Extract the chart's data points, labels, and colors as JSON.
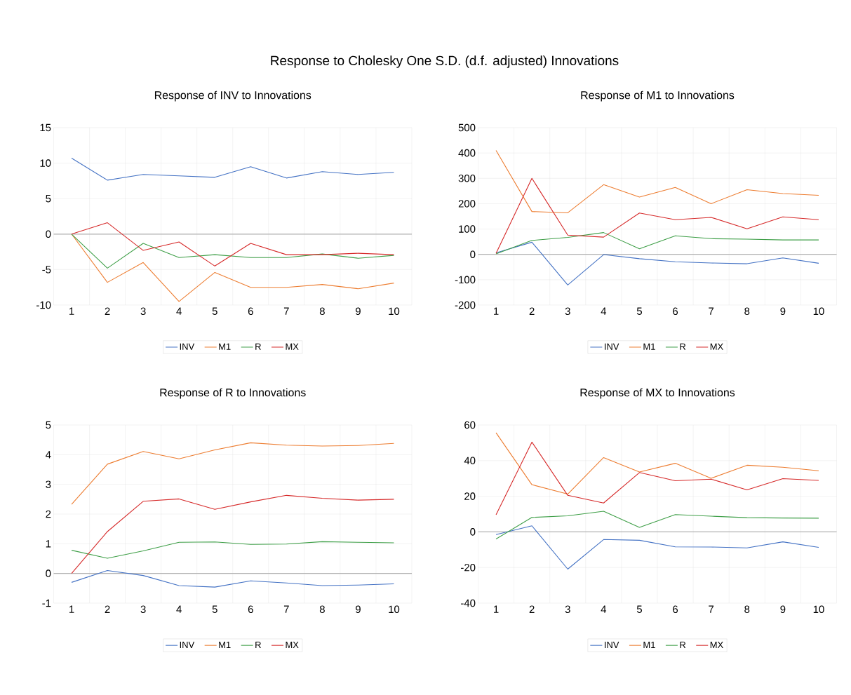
{
  "chart_data": [
    {
      "type": "line",
      "title": "Response of INV to Innovations",
      "annotations": [
        "Response to Cholesky One S.D. (d.f. adjusted) Innovations"
      ],
      "categories": [
        "1",
        "2",
        "3",
        "4",
        "5",
        "6",
        "7",
        "8",
        "9",
        "10"
      ],
      "ylim": [
        -10,
        15
      ],
      "yticks": [
        -10,
        -5,
        0,
        5,
        10,
        15
      ],
      "grid": true,
      "legend": "bottom",
      "series": [
        {
          "name": "INV",
          "color": "#4472c4",
          "values": [
            10.7,
            7.6,
            8.4,
            8.2,
            8.0,
            9.5,
            7.9,
            8.8,
            8.4,
            8.7
          ]
        },
        {
          "name": "M1",
          "color": "#ed7d31",
          "values": [
            0,
            -6.8,
            -4.0,
            -9.5,
            -5.4,
            -7.5,
            -7.5,
            -7.1,
            -7.7,
            -6.9
          ]
        },
        {
          "name": "R",
          "color": "#3f9f48",
          "values": [
            0,
            -4.8,
            -1.3,
            -3.3,
            -2.9,
            -3.3,
            -3.3,
            -2.8,
            -3.4,
            -3.0
          ]
        },
        {
          "name": "MX",
          "color": "#d62a2a",
          "values": [
            0,
            1.6,
            -2.3,
            -1.1,
            -4.5,
            -1.3,
            -2.9,
            -2.9,
            -2.7,
            -2.9
          ]
        }
      ]
    },
    {
      "type": "line",
      "title": "Response of M1 to Innovations",
      "categories": [
        "1",
        "2",
        "3",
        "4",
        "5",
        "6",
        "7",
        "8",
        "9",
        "10"
      ],
      "ylim": [
        -200,
        500
      ],
      "yticks": [
        -200,
        -100,
        0,
        100,
        200,
        300,
        400,
        500
      ],
      "grid": true,
      "legend": "bottom",
      "series": [
        {
          "name": "INV",
          "color": "#4472c4",
          "values": [
            6,
            48,
            -121,
            -1,
            -17,
            -29,
            -34,
            -37,
            -14,
            -35
          ]
        },
        {
          "name": "M1",
          "color": "#ed7d31",
          "values": [
            410,
            169,
            164,
            275,
            226,
            264,
            200,
            255,
            240,
            233
          ]
        },
        {
          "name": "R",
          "color": "#3f9f48",
          "values": [
            2,
            55,
            67,
            86,
            22,
            73,
            62,
            60,
            57,
            57
          ]
        },
        {
          "name": "MX",
          "color": "#d62a2a",
          "values": [
            4,
            300,
            76,
            68,
            163,
            137,
            146,
            101,
            148,
            137
          ]
        }
      ]
    },
    {
      "type": "line",
      "title": "Response of R to Innovations",
      "categories": [
        "1",
        "2",
        "3",
        "4",
        "5",
        "6",
        "7",
        "8",
        "9",
        "10"
      ],
      "ylim": [
        -1,
        5
      ],
      "yticks": [
        -1,
        0,
        1,
        2,
        3,
        4,
        5
      ],
      "grid": true,
      "legend": "bottom",
      "series": [
        {
          "name": "INV",
          "color": "#4472c4",
          "values": [
            -0.3,
            0.1,
            -0.07,
            -0.41,
            -0.46,
            -0.25,
            -0.32,
            -0.41,
            -0.39,
            -0.35
          ]
        },
        {
          "name": "M1",
          "color": "#ed7d31",
          "values": [
            2.33,
            3.68,
            4.11,
            3.86,
            4.16,
            4.4,
            4.32,
            4.29,
            4.31,
            4.38
          ]
        },
        {
          "name": "R",
          "color": "#3f9f48",
          "values": [
            0.78,
            0.51,
            0.76,
            1.05,
            1.06,
            0.98,
            0.99,
            1.07,
            1.05,
            1.03
          ]
        },
        {
          "name": "MX",
          "color": "#d62a2a",
          "values": [
            0,
            1.41,
            2.43,
            2.51,
            2.16,
            2.41,
            2.63,
            2.53,
            2.47,
            2.5
          ]
        }
      ]
    },
    {
      "type": "line",
      "title": "Response of MX to Innovations",
      "categories": [
        "1",
        "2",
        "3",
        "4",
        "5",
        "6",
        "7",
        "8",
        "9",
        "10"
      ],
      "ylim": [
        -40,
        60
      ],
      "yticks": [
        -40,
        -20,
        0,
        20,
        40,
        60
      ],
      "grid": true,
      "legend": "bottom",
      "series": [
        {
          "name": "INV",
          "color": "#4472c4",
          "values": [
            -1.5,
            3.4,
            -20.9,
            -4.3,
            -4.7,
            -8.4,
            -8.5,
            -9,
            -5.6,
            -8.7
          ]
        },
        {
          "name": "M1",
          "color": "#ed7d31",
          "values": [
            55.6,
            26.5,
            21.2,
            41.7,
            33.6,
            38.5,
            30.1,
            37.4,
            36.3,
            34.3
          ]
        },
        {
          "name": "R",
          "color": "#3f9f48",
          "values": [
            -4,
            8.1,
            9,
            11.6,
            2.5,
            9.7,
            8.8,
            8,
            7.8,
            7.7
          ]
        },
        {
          "name": "MX",
          "color": "#d62a2a",
          "values": [
            9.6,
            50.4,
            20.5,
            16.2,
            33.3,
            28.7,
            29.6,
            23.6,
            29.9,
            28.9
          ]
        }
      ]
    }
  ]
}
